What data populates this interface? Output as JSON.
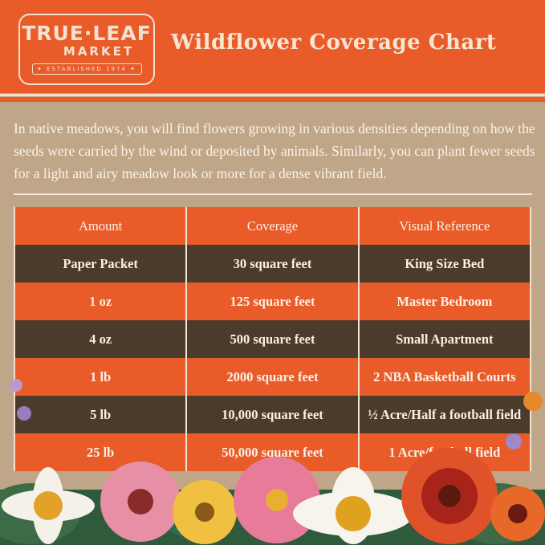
{
  "brand": {
    "line1": "TRUE·LEAF",
    "line2": "MARKET",
    "tagline": "✦ ESTABLISHED 1974 ✦"
  },
  "title": "Wildflower Coverage Chart",
  "intro": "In native meadows, you will find flowers growing in various densities depending on how the seeds were carried by the wind or deposited by animals. Similarly, you can plant fewer seeds for a light and airy meadow look or more for a dense vibrant field.",
  "table": {
    "headers": [
      "Amount",
      "Coverage",
      "Visual Reference"
    ],
    "rows": [
      [
        "Paper Packet",
        "30 square feet",
        "King Size Bed"
      ],
      [
        "1 oz",
        "125 square feet",
        "Master Bedroom"
      ],
      [
        "4 oz",
        "500 square feet",
        "Small Apartment"
      ],
      [
        "1 lb",
        "2000 square feet",
        "2 NBA Basketball Courts"
      ],
      [
        "5 lb",
        "10,000 square feet",
        "½ Acre/Half a football field"
      ],
      [
        "25 lb",
        "50,000 square feet",
        "1 Acre/football field"
      ]
    ]
  },
  "colors": {
    "orange": "#ea5b2a",
    "brown": "#4b3b2b",
    "tan": "#c0a688",
    "cream": "#f3e2cf"
  }
}
